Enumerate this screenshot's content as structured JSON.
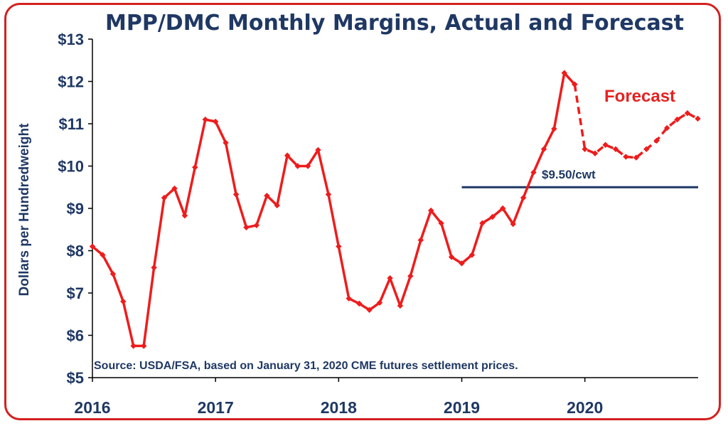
{
  "chart_data": {
    "type": "line",
    "title": "MPP/DMC Monthly Margins, Actual and Forecast",
    "ylabel": "Dollars per Hundredweight",
    "xlabel": "",
    "ylim": [
      5,
      13
    ],
    "y_ticks": [
      "$5",
      "$6",
      "$7",
      "$8",
      "$9",
      "$10",
      "$11",
      "$12",
      "$13"
    ],
    "x_ticks": [
      "2016",
      "2017",
      "2018",
      "2019",
      "2020"
    ],
    "grid": false,
    "source_note": "Source:  USDA/FSA, based on January 31, 2020 CME futures settlement prices.",
    "annotations": {
      "forecast_label": "Forecast",
      "reference_label": "$9.50/cwt"
    },
    "reference_line": {
      "value": 9.5,
      "x_start": 2019.0,
      "x_end": 2020.92
    },
    "series": [
      {
        "segment": "actual",
        "style": "solid",
        "x": [
          2016.0,
          2016.083,
          2016.167,
          2016.25,
          2016.333,
          2016.417,
          2016.5,
          2016.583,
          2016.667,
          2016.75,
          2016.833,
          2016.917,
          2017.0,
          2017.083,
          2017.167,
          2017.25,
          2017.333,
          2017.417,
          2017.5,
          2017.583,
          2017.667,
          2017.75,
          2017.833,
          2017.917,
          2018.0,
          2018.083,
          2018.167,
          2018.25,
          2018.333,
          2018.417,
          2018.5,
          2018.583,
          2018.667,
          2018.75,
          2018.833,
          2018.917,
          2019.0,
          2019.083,
          2019.167,
          2019.25,
          2019.333,
          2019.417,
          2019.5,
          2019.583,
          2019.667,
          2019.75,
          2019.833,
          2019.917
        ],
        "values": [
          8.1,
          7.9,
          7.45,
          6.8,
          5.75,
          5.75,
          7.6,
          9.25,
          9.47,
          8.83,
          9.97,
          11.1,
          11.05,
          10.55,
          9.33,
          8.55,
          8.6,
          9.3,
          9.07,
          10.25,
          10.0,
          10.0,
          10.38,
          9.33,
          8.1,
          6.87,
          6.75,
          6.6,
          6.77,
          7.35,
          6.7,
          7.4,
          8.25,
          8.95,
          8.65,
          7.85,
          7.7,
          7.9,
          8.65,
          8.8,
          9.0,
          8.63,
          9.25,
          9.85,
          10.4,
          10.88,
          12.2,
          11.93
        ]
      },
      {
        "segment": "forecast",
        "style": "dashed",
        "x": [
          2019.917,
          2020.0,
          2020.083,
          2020.167,
          2020.25,
          2020.333,
          2020.417,
          2020.5,
          2020.583,
          2020.667,
          2020.75,
          2020.833,
          2020.917
        ],
        "values": [
          11.93,
          10.4,
          10.3,
          10.5,
          10.4,
          10.22,
          10.2,
          10.4,
          10.6,
          10.9,
          11.1,
          11.25,
          11.12
        ]
      }
    ]
  }
}
